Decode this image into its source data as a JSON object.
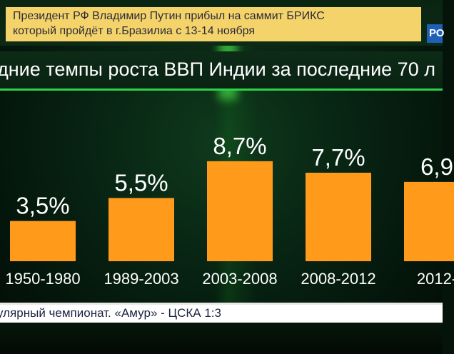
{
  "news_ticker": {
    "line1": "Президент РФ Владимир Путин прибыл на саммит БРИКС",
    "line2": "который пройдёт в г.Бразилиа с 13-14 ноября"
  },
  "channel_badge": "РО",
  "headline": "дние темпы роста ВВП Индии за последние 70 л",
  "bottom_ticker": "улярный чемпионат. «Амур» - ЦСКА 1:3",
  "colors": {
    "bar": "#ff9a1a",
    "bar_text": "#ffffff",
    "accent_green": "#2bd24a",
    "news_box": "#f4d46a"
  },
  "chart_data": {
    "type": "bar",
    "title": "дние темпы роста ВВП Индии за последние 70 л",
    "categories": [
      "1950-1980",
      "1989-2003",
      "2003-2008",
      "2008-2012",
      "2012-"
    ],
    "values": [
      3.5,
      5.5,
      8.7,
      7.7,
      6.9
    ],
    "value_labels": [
      "3,5%",
      "5,5%",
      "8,7%",
      "7,7%",
      "6,9"
    ],
    "ylim": [
      0,
      9.5
    ],
    "grid": false,
    "legend": "none"
  }
}
